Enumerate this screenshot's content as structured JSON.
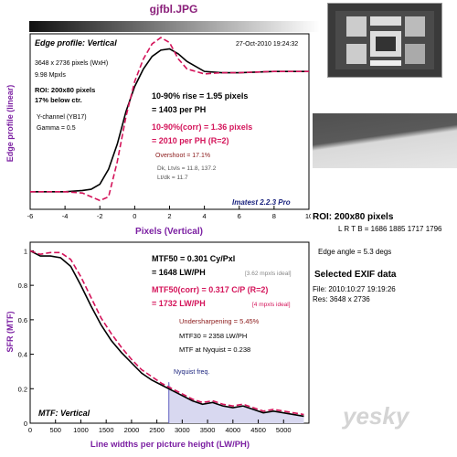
{
  "file_title": "gjfbl.JPG",
  "colors": {
    "black_line": "#000000",
    "corrected_line": "#d4145a",
    "fill": "#d8d8f0",
    "title_blue": "#1a237e",
    "axis_label": "#7b1fa2"
  },
  "edge_panel": {
    "title": "Edge profile: Vertical",
    "timestamp": "27-Oct-2010 19:24:32",
    "dims": "3648 x 2736 pixels (WxH)",
    "mpxls": "9.98 Mpxls",
    "roi": "ROI: 200x80 pixels",
    "below": "17% below ctr.",
    "channel": "Y-channel  (YB17)",
    "gamma": "Gamma = 0.5",
    "rise": "10-90% rise = 1.95 pixels",
    "rise_ph": "= 1403 per PH",
    "rise_corr": "10-90%(corr) = 1.36 pixels",
    "rise_corr_ph": "= 2010 per PH  (R=2)",
    "overshoot": "Overshoot = 17.1%",
    "dk": "Dk, Ltvls = 11.8, 137.2",
    "lt": "Lt/dk = 11.7",
    "version": "Imatest 2.2.3 Pro"
  },
  "mtf_panel": {
    "title": "MTF: Vertical",
    "mtf50": "MTF50 = 0.301 Cy/Pxl",
    "mtf50_lw": "= 1648 LW/PH",
    "mtf50_ideal": "[3.62 mpxls ideal]",
    "mtf50corr": "MTF50(corr) = 0.317 C/P  (R=2)",
    "mtf50corr_lw": "= 1732 LW/PH",
    "mtf50corr_ideal": "[4 mpxls ideal]",
    "undersharp": "Undersharpening = 5.45%",
    "mtf30": "MTF30 = 2358 LW/PH",
    "nyq": "MTF at Nyquist = 0.238",
    "nyq_label": "Nyquist freq."
  },
  "right_panel": {
    "roi_title": "ROI: 200x80 pixels",
    "lrtb": "L R T B = 1686 1885  1717 1796",
    "edge_angle": "Edge angle = 5.3 degs",
    "exif_title": "Selected EXIF data",
    "file": "File:   2010:10:27 19:19:26",
    "res": "Res:   3648 x 2736"
  },
  "chart_data": [
    {
      "type": "line",
      "title": "Edge profile: Vertical",
      "xlabel": "Pixels (Vertical)",
      "ylabel": "Edge profile (linear)",
      "xlim": [
        -6,
        10
      ],
      "ylim": [
        -0.1,
        1.3
      ],
      "xticks": [
        -6,
        -4,
        -2,
        0,
        2,
        4,
        6,
        8,
        10
      ],
      "series": [
        {
          "x": [
            -6,
            -5,
            -4,
            -3,
            -2.5,
            -2,
            -1.5,
            -1,
            -0.5,
            0,
            0.5,
            1,
            1.5,
            2,
            2.5,
            3,
            4,
            5,
            6,
            8,
            10
          ],
          "y": [
            0.04,
            0.04,
            0.04,
            0.05,
            0.06,
            0.1,
            0.22,
            0.42,
            0.68,
            0.88,
            1.02,
            1.12,
            1.17,
            1.18,
            1.14,
            1.08,
            1.0,
            0.99,
            0.99,
            1.0,
            1.0
          ]
        },
        {
          "x": [
            -6,
            -4,
            -3,
            -2.5,
            -2,
            -1.5,
            -1,
            -0.5,
            0,
            0.5,
            1,
            1.5,
            2,
            2.5,
            3,
            4,
            5,
            6,
            8,
            10
          ],
          "y": [
            0.04,
            0.04,
            0.03,
            0.0,
            -0.03,
            0.0,
            0.28,
            0.64,
            0.92,
            1.1,
            1.22,
            1.27,
            1.23,
            1.1,
            1.02,
            0.98,
            0.99,
            0.99,
            1.0,
            1.0
          ]
        }
      ]
    },
    {
      "type": "line",
      "title": "MTF: Vertical",
      "xlabel": "Line widths per picture height (LW/PH)",
      "ylabel": "SFR (MTF)",
      "xlim": [
        0,
        5500
      ],
      "ylim": [
        0,
        1.05
      ],
      "xticks": [
        0,
        500,
        1000,
        1500,
        2000,
        2500,
        3000,
        3500,
        4000,
        4500,
        5000
      ],
      "nyquist_x": 2736,
      "series": [
        {
          "x": [
            0,
            200,
            400,
            600,
            800,
            1000,
            1200,
            1400,
            1600,
            1800,
            2000,
            2200,
            2400,
            2600,
            2800,
            3000,
            3200,
            3400,
            3600,
            3800,
            4000,
            4200,
            4400,
            4600,
            4800,
            5000,
            5200,
            5400
          ],
          "y": [
            1.0,
            0.97,
            0.97,
            0.96,
            0.91,
            0.8,
            0.68,
            0.57,
            0.48,
            0.41,
            0.35,
            0.29,
            0.25,
            0.22,
            0.19,
            0.16,
            0.13,
            0.11,
            0.12,
            0.1,
            0.09,
            0.1,
            0.08,
            0.06,
            0.07,
            0.06,
            0.05,
            0.04
          ]
        },
        {
          "x": [
            0,
            200,
            400,
            600,
            800,
            1000,
            1200,
            1400,
            1600,
            1800,
            2000,
            2200,
            2400,
            2600,
            2800,
            3000,
            3200,
            3400,
            3600,
            3800,
            4000,
            4200,
            4400,
            4600,
            4800,
            5000,
            5200,
            5400
          ],
          "y": [
            1.0,
            0.98,
            0.99,
            0.99,
            0.95,
            0.85,
            0.73,
            0.61,
            0.52,
            0.44,
            0.37,
            0.31,
            0.27,
            0.23,
            0.2,
            0.17,
            0.14,
            0.12,
            0.13,
            0.11,
            0.1,
            0.11,
            0.09,
            0.07,
            0.08,
            0.07,
            0.06,
            0.05
          ]
        }
      ]
    }
  ]
}
